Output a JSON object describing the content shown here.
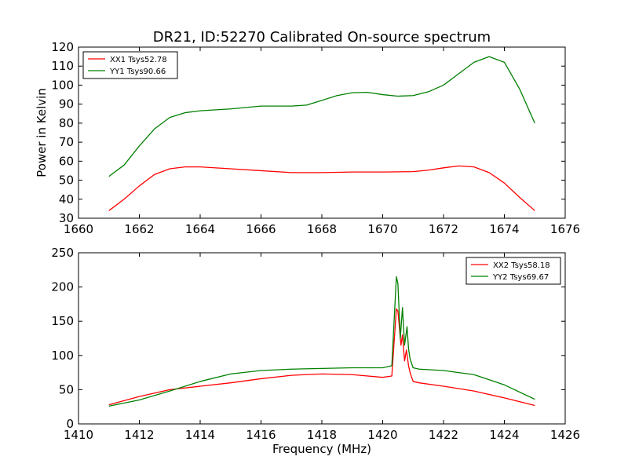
{
  "figure": {
    "title": "DR21, ID:52270 Calibrated On-source spectrum",
    "shared_ylabel": "Power in Kelvin",
    "shared_xlabel": "Frequency (MHz)"
  },
  "colors": {
    "red": "#ff0000",
    "green": "#008000",
    "axis": "#000000"
  },
  "chart_data": [
    {
      "type": "line",
      "xlim": [
        1660,
        1676
      ],
      "ylim": [
        30,
        120
      ],
      "xticks": [
        1660,
        1662,
        1664,
        1666,
        1668,
        1670,
        1672,
        1674,
        1676
      ],
      "yticks": [
        30,
        40,
        50,
        60,
        70,
        80,
        90,
        100,
        110,
        120
      ],
      "legend_position": "top-left",
      "series": [
        {
          "name": "XX1 Tsys52.78",
          "color": "#ff0000",
          "x": [
            1661.0,
            1661.5,
            1662.0,
            1662.5,
            1663.0,
            1663.5,
            1664.0,
            1665.0,
            1666.0,
            1667.0,
            1668.0,
            1669.0,
            1670.0,
            1671.0,
            1671.5,
            1672.0,
            1672.5,
            1673.0,
            1673.5,
            1674.0,
            1674.5,
            1675.0
          ],
          "y": [
            34,
            40,
            47,
            53,
            56,
            57,
            57,
            56,
            55,
            54,
            54,
            54.3,
            54.3,
            54.5,
            55.3,
            56.5,
            57.5,
            57,
            54,
            48.5,
            41,
            34
          ]
        },
        {
          "name": "YY1 Tsys90.66",
          "color": "#008000",
          "x": [
            1661.0,
            1661.5,
            1662.0,
            1662.5,
            1663.0,
            1663.5,
            1664.0,
            1665.0,
            1666.0,
            1667.0,
            1667.5,
            1668.0,
            1668.5,
            1669.0,
            1669.5,
            1670.0,
            1670.5,
            1671.0,
            1671.5,
            1672.0,
            1672.5,
            1673.0,
            1673.5,
            1674.0,
            1674.5,
            1675.0
          ],
          "y": [
            52,
            58,
            68,
            77,
            83,
            85.5,
            86.5,
            87.5,
            89,
            89,
            89.5,
            92,
            94.5,
            96,
            96.2,
            95,
            94.2,
            94.5,
            96.5,
            100,
            106,
            112,
            115,
            112,
            98,
            80
          ]
        }
      ]
    },
    {
      "type": "line",
      "xlim": [
        1410,
        1426
      ],
      "ylim": [
        0,
        250
      ],
      "xticks": [
        1410,
        1412,
        1414,
        1416,
        1418,
        1420,
        1422,
        1424,
        1426
      ],
      "yticks": [
        0,
        50,
        100,
        150,
        200,
        250
      ],
      "legend_position": "top-right",
      "series": [
        {
          "name": "XX2 Tsys58.18",
          "color": "#ff0000",
          "x": [
            1411.0,
            1412.0,
            1413.0,
            1414.0,
            1415.0,
            1416.0,
            1417.0,
            1418.0,
            1419.0,
            1420.0,
            1420.3,
            1420.45,
            1420.5,
            1420.6,
            1420.65,
            1420.72,
            1420.78,
            1420.85,
            1420.9,
            1421.0,
            1421.2,
            1422.0,
            1423.0,
            1424.0,
            1425.0
          ],
          "y": [
            28,
            40,
            50,
            55,
            60,
            66,
            71,
            73,
            72,
            68,
            70,
            168,
            165,
            115,
            130,
            92,
            108,
            85,
            75,
            62,
            60,
            55,
            48,
            38,
            27
          ]
        },
        {
          "name": "YY2 Tsys69.67",
          "color": "#008000",
          "x": [
            1411.0,
            1412.0,
            1413.0,
            1414.0,
            1415.0,
            1416.0,
            1417.0,
            1418.0,
            1419.0,
            1420.0,
            1420.3,
            1420.45,
            1420.5,
            1420.58,
            1420.65,
            1420.72,
            1420.8,
            1420.85,
            1420.9,
            1421.0,
            1421.2,
            1422.0,
            1423.0,
            1424.0,
            1425.0
          ],
          "y": [
            26,
            35,
            48,
            62,
            73,
            78,
            80,
            81,
            82,
            82,
            85,
            215,
            205,
            125,
            170,
            115,
            142,
            110,
            95,
            82,
            80,
            78,
            72,
            57,
            36
          ]
        }
      ]
    }
  ]
}
